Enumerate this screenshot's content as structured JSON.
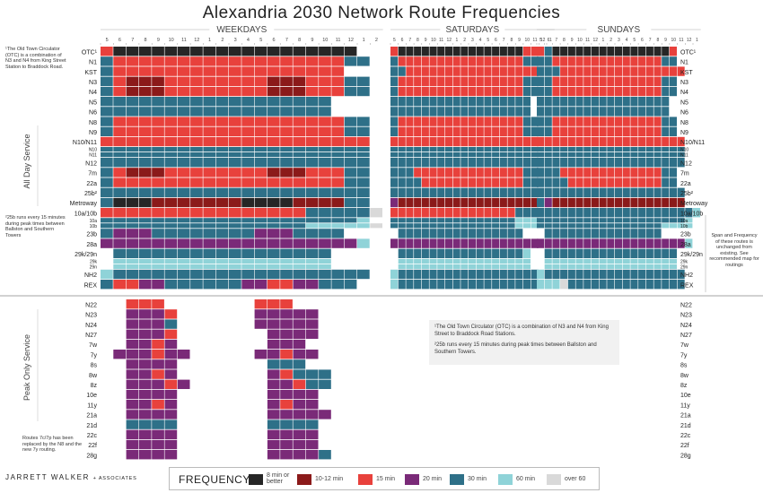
{
  "title": "Alexandria 2030 Network Route Frequencies",
  "sections": {
    "weekdays": "WEEKDAYS",
    "saturdays": "SATURDAYS",
    "sundays": "SUNDAYS"
  },
  "side_labels": {
    "all_day": "All Day Service",
    "peak_only": "Peak Only Service"
  },
  "notes": {
    "otc_side": "¹The Old Town Circulator (OTC) is a combination of N3 and N4 from King Street Station to Braddock Road.",
    "b25_side": "²25b runs every 15 minutes during peak times between Ballston and Southern Towers",
    "replaced": "Routes 7c/7p has been replaced by the N8 and the new 7y routing.",
    "span": "Span and Frequency of these routes is unchanged from existing. See recommended map for routings",
    "center_1": "¹The Old Town Circulator (OTC) is a combination of N3 and N4 from King Street to Braddock Road Stations.",
    "center_2": "²25b runs every 15 minutes during peak times between Ballston and Southern Towers."
  },
  "logo": {
    "name": "JARRETT WALKER",
    "suffix": "+ ASSOCIATES"
  },
  "legend": {
    "title": "FREQUENCY",
    "items": [
      {
        "label": "8 min or better",
        "color": "#262626"
      },
      {
        "label": "10-12 min",
        "color": "#8b1a1a"
      },
      {
        "label": "15 min",
        "color": "#e8413c"
      },
      {
        "label": "20 min",
        "color": "#7a2a78"
      },
      {
        "label": "30 min",
        "color": "#2e7088"
      },
      {
        "label": "60 min",
        "color": "#8fd3d8"
      },
      {
        "label": "over 60",
        "color": "#d9d9d9"
      }
    ]
  },
  "chart_data": {
    "type": "heatmap",
    "title": "Alexandria 2030 Network Route Frequencies",
    "legend_codes": {
      "K": "8 min or better",
      "M": "10-12 min",
      "R": "15 min",
      "P": "20 min",
      "T": "30 min",
      "L": "60 min",
      "G": "over 60",
      ".": "no service"
    },
    "hours": {
      "weekdays": [
        "5",
        "6",
        "7",
        "8",
        "9",
        "10",
        "11",
        "12",
        "1",
        "2",
        "3",
        "4",
        "5",
        "6",
        "7",
        "8",
        "9",
        "10",
        "11",
        "12",
        "1",
        "2"
      ],
      "saturdays": [
        "5",
        "6",
        "7",
        "8",
        "9",
        "10",
        "11",
        "12",
        "1",
        "2",
        "3",
        "4",
        "5",
        "6",
        "7",
        "8",
        "9",
        "10",
        "11",
        "12",
        "1"
      ],
      "sundays": [
        "5",
        "6",
        "7",
        "8",
        "9",
        "10",
        "11",
        "12",
        "1",
        "2",
        "3",
        "4",
        "5",
        "6",
        "7",
        "8",
        "9",
        "10",
        "11",
        "12",
        "1"
      ]
    },
    "rows": [
      {
        "route": "OTC¹",
        "wd": "RKKKKKKKKKKKKKKKKKKK..",
        "sat": "RKKKKKKKKKKKKKKKKRR..",
        "sun": "RTKKKKKKKKKKKKKKKR..."
      },
      {
        "route": "N1",
        "wd": "TRRRRRRRRRRRRRRRRRRTT.",
        "sat": "TRRRRRRRRRRRRRRRRTT..",
        "sun": "TTRRRRRRRRRRRRRRTT..."
      },
      {
        "route": "KST",
        "wd": "TRRRRRRRRRRRRRRRRRR...",
        "sat": "TTRRRRRRRRRRRRRRRRR..",
        "sun": "TTTRRRRRRRRRRRRRRRR.."
      },
      {
        "route": "N3",
        "wd": "TRMMMRRRRRRRRMMMRRRTT.",
        "sat": "TRRRRRRRRRRRRRRRRTT..",
        "sun": "TTRRRRRRRRRRRRRRTT..."
      },
      {
        "route": "N4",
        "wd": "TRMMMRRRRRRRRMMMRRRTT.",
        "sat": "TRRRRRRRRRRRRRRRRTT..",
        "sun": "TTRRRRRRRRRRRRRRTT..."
      },
      {
        "route": "N5",
        "wd": "TTTTTTTTTTTTTTTTTT....",
        "sat": "TTTTTTTTTTTTTTTTTT...",
        "sun": "TTTTTTTTTTTTTTTTT...."
      },
      {
        "route": "N6",
        "wd": "TTTTTTTTTTTTTTTTTT....",
        "sat": "TTTTTTTTTTTTTTTTTT...",
        "sun": "TTTTTTTTTTTTTTTTT...."
      },
      {
        "route": "N8",
        "wd": "TRRRRRRRRRRRRRRRRRRTT.",
        "sat": "TRRRRRRRRRRRRRRRRTT..",
        "sun": "TTRRRRRRRRRRRRRRTT..."
      },
      {
        "route": "N9",
        "wd": "TRRRRRRRRRRRRRRRRRRTT.",
        "sat": "TRRRRRRRRRRRRRRRRTT..",
        "sun": "TTRRRRRRRRRRRRRRTT..."
      },
      {
        "route": "N10/N11",
        "wd": "RRRRRRRRRRRRRRRRRRRRR.",
        "sat": "RRRRRRRRRRRRRRRRRRR..",
        "sun": "RRRRRRRRRRRRRRRRRRR.."
      },
      {
        "route": "N10",
        "wd": "TTTTTTTTTTTTTTTTTTTTT.",
        "sat": "TTTTTTTTTTTTTTTTTTT..",
        "sun": "TTTTTTTTTTTTTTTTTTT.."
      },
      {
        "route": "N11",
        "wd": "TTTTTTTTTTTTTTTTTTTTT.",
        "sat": "TTTTTTTTTTTTTTTTTTT..",
        "sun": "TTTTTTTTTTTTTTTTTTT.."
      },
      {
        "route": "N12",
        "wd": "TTTTTTTTTTTTTTTTTTTTT.",
        "sat": "TTTTTTTTTTTTTTTTTTT..",
        "sun": "TTTTTTTTTTTTTTTTTTT.."
      },
      {
        "route": "7m",
        "wd": "TRMMMRRRRRRRRMMMRRRTT.",
        "sat": "TTTRRRRRRRRRRRRRRTT..",
        "sun": "TTTRRRRRRRRRRRRRTT..."
      },
      {
        "route": "22a",
        "wd": "TRRRRRRRRRRRRRRRRRRTT.",
        "sat": "TTTTRRRRRRRRRRRRRTT..",
        "sun": "TTTTRRRRRRRRRRRRTT..."
      },
      {
        "route": "25b²",
        "wd": "TTTTTTTTTTTTTTTTTTTTT.",
        "sat": "TTTTTTTTTTTTTTTTTTT..",
        "sun": "TTTTTTTTTTTTTTTTTTT.."
      },
      {
        "route": "Metroway",
        "wd": "TKKKMMMMMMMKKKKMMMMTT.",
        "sat": "PMMMMMMMMMMMMMMMMMM..",
        "sun": "TPMMMMMMMMMMMMMMMMM.."
      },
      {
        "route": "10a/10b",
        "wd": "RRRRRRRRRRRRRRRRTTTTTG",
        "sat": "RRRRRRRRRRRRRRRRTTT..",
        "sun": "TTTTTTTTTTTTTTTTTTTTL"
      },
      {
        "route": "10a",
        "wd": "TTTTTTTTTTTTTTTTTTTTL.",
        "sat": "TTTTTTTTTTTTTTTTLLL..",
        "sun": "TTTTTTTTTTTTTTTTTTTL."
      },
      {
        "route": "10b",
        "wd": "TTTTTTTTTTTTTTTTLLLLLG",
        "sat": "TTTTTTTTTTTTTTTTLLL..",
        "sun": "TTTTTTTTTTTTTTTTLLLL."
      },
      {
        "route": "23b",
        "wd": "TPPPTTTTTTTTPPPTTTT...",
        "sat": ".TTTTTTTTTTTTTTTT....",
        "sun": ".TTTTTTTTTTTTTTT....."
      },
      {
        "route": "28a",
        "wd": "PPPPPPPPPPPPPPPPPPPPL.",
        "sat": "PPPPPPPPPPPPPPPPPPP..",
        "sun": "PPPPPPPPPPPPPPPPPPPL."
      },
      {
        "route": "29k/29n",
        "wd": ".TTTTTTTTTTTTTTTTT....",
        "sat": ".TTTTTTTTTTTTTTTTL...",
        "sun": ".TTTTTTTTTTTTTTTTT..."
      },
      {
        "route": "29k",
        "wd": ".LLLLLLLLLLLLLLLLL....",
        "sat": ".LLLLLLLLLLLLLLLLL...",
        "sun": ".LLLLLLLLLLLLLLLLL..."
      },
      {
        "route": "29n",
        "wd": ".LLLLLLLLLLLLLLLLL....",
        "sat": ".LLLLLLLLLLLLLLLLL...",
        "sun": ".LLLLLLLLLLLLLLLLL..."
      },
      {
        "route": "NH2",
        "wd": "LTTTTTTTTTTTTTTTTTTTT.",
        "sat": "LTTTTTTTTTTTTTTTTTT..",
        "sun": "LTTTTTTTTTTTTTTTTTT.."
      },
      {
        "route": "REX",
        "wd": "TRRPPTTTTTTPPRRPPTTT..",
        "sat": "LTTTTTTTTTTTTTTTTTT..",
        "sun": "LLLGTTTTTTTTTTTTTTT.."
      },
      {
        "route": "N22",
        "wd": "..RRR.......RRR......."
      },
      {
        "route": "N23",
        "wd": "..PPPR......PPPPP....."
      },
      {
        "route": "N24",
        "wd": "..PPPT......PPPPP....."
      },
      {
        "route": "N27",
        "wd": "..PPPR.......PPPP....."
      },
      {
        "route": "7w",
        "wd": "..PPRP.......PPP......"
      },
      {
        "route": "7y",
        "wd": ".PPPRPP.....PPRPP....."
      },
      {
        "route": "8s",
        "wd": "..PPPP.......TTT......"
      },
      {
        "route": "8w",
        "wd": "..PPRP.......PRTTT...."
      },
      {
        "route": "8z",
        "wd": "..PPPRP......PPRTT...."
      },
      {
        "route": "10e",
        "wd": "..PPPP.......PPPP....."
      },
      {
        "route": "11y",
        "wd": "..PPRP.......PRPP....."
      },
      {
        "route": "21a",
        "wd": "..PPPP.......PPPPP...."
      },
      {
        "route": "21d",
        "wd": "..TTTT.......TTTT....."
      },
      {
        "route": "22c",
        "wd": "..PPPP.......PPPP....."
      },
      {
        "route": "22f",
        "wd": "..PPPP.......PPPP....."
      },
      {
        "route": "28g",
        "wd": "..PPPP.......PPPPT...."
      }
    ]
  }
}
